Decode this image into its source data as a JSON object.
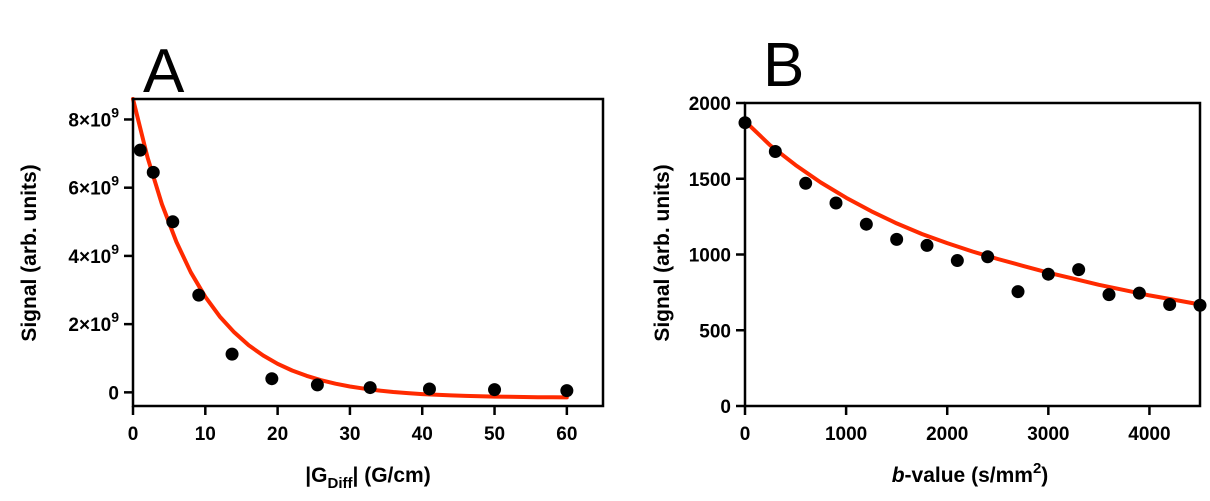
{
  "chart_data": [
    {
      "type": "scatter",
      "panel_label": "A",
      "xlabel": {
        "pre": "|G",
        "sub": "Diff",
        "post": "| (G/cm)"
      },
      "ylabel": "Signal (arb. units)",
      "xlim": [
        0,
        65
      ],
      "ylim": [
        -400000000.0,
        8600000000.0
      ],
      "xticks": [
        0,
        10,
        20,
        30,
        40,
        50,
        60
      ],
      "xtick_labels": [
        "0",
        "10",
        "20",
        "30",
        "40",
        "50",
        "60"
      ],
      "yticks": [
        0,
        2000000000.0,
        4000000000.0,
        6000000000.0,
        8000000000.0
      ],
      "ytick_labels": [
        {
          "mant": "0",
          "exp": ""
        },
        {
          "mant": "2×10",
          "exp": "9"
        },
        {
          "mant": "4×10",
          "exp": "9"
        },
        {
          "mant": "6×10",
          "exp": "9"
        },
        {
          "mant": "8×10",
          "exp": "9"
        }
      ],
      "points": {
        "x": [
          1,
          2.8,
          5.5,
          9.1,
          13.7,
          19.2,
          25.5,
          32.8,
          41,
          50,
          60
        ],
        "y": [
          7100000000.0,
          6450000000.0,
          5000000000.0,
          2850000000.0,
          1120000000.0,
          400000000.0,
          220000000.0,
          140000000.0,
          100000000.0,
          80000000.0,
          50000000.0
        ]
      },
      "fit": {
        "x": [
          0,
          2,
          4,
          6,
          8,
          10,
          12,
          14,
          16,
          18,
          20,
          22,
          24,
          26,
          28,
          30,
          32,
          34,
          36,
          38,
          40,
          42,
          44,
          46,
          48,
          50,
          52,
          54,
          56,
          58,
          60
        ],
        "y": [
          8600000000.0,
          6890000000.0,
          5520000000.0,
          4410000000.0,
          3520000000.0,
          2800000000.0,
          2220000000.0,
          1760000000.0,
          1380000000.0,
          1080000000.0,
          838000000.0,
          642000000.0,
          484000000.0,
          357000000.0,
          255000000.0,
          173000000.0,
          107000000.0,
          54000000.0,
          11000000.0,
          -23000000.0,
          -50000000.0,
          -71000000.0,
          -89000000.0,
          -103000000.0,
          -114000000.0,
          -123000000.0,
          -130000000.0,
          -136000000.0,
          -141000000.0,
          -144000000.0,
          -147000000.0
        ]
      }
    },
    {
      "type": "scatter",
      "panel_label": "B",
      "xlabel": {
        "ital": "b",
        "rest": "-value (s/mm",
        "sup": "2",
        "close": ")"
      },
      "ylabel": "Signal (arb. units)",
      "xlim": [
        0,
        4500
      ],
      "ylim": [
        0,
        2000
      ],
      "xticks": [
        0,
        1000,
        2000,
        3000,
        4000
      ],
      "xtick_labels": [
        "0",
        "1000",
        "2000",
        "3000",
        "4000"
      ],
      "yticks": [
        0,
        500,
        1000,
        1500,
        2000
      ],
      "ytick_labels": [
        "0",
        "500",
        "1000",
        "1500",
        "2000"
      ],
      "points": {
        "x": [
          0,
          300,
          600,
          900,
          1200,
          1500,
          1800,
          2100,
          2400,
          2700,
          3000,
          3300,
          3600,
          3900,
          4200,
          4500
        ],
        "y": [
          1870,
          1680,
          1470,
          1340,
          1200,
          1100,
          1060,
          960,
          985,
          755,
          870,
          900,
          735,
          745,
          670,
          665
        ]
      },
      "fit": {
        "x": [
          0,
          250,
          500,
          750,
          1000,
          1250,
          1500,
          1750,
          2000,
          2250,
          2500,
          2750,
          3000,
          3250,
          3500,
          3750,
          4000,
          4250,
          4500
        ],
        "y": [
          1880,
          1720,
          1590,
          1475,
          1375,
          1285,
          1205,
          1135,
          1075,
          1020,
          970,
          925,
          880,
          840,
          800,
          765,
          730,
          700,
          670
        ]
      }
    }
  ],
  "colors": {
    "fit": "#ff2a00",
    "points": "#000000",
    "axes": "#000000"
  }
}
